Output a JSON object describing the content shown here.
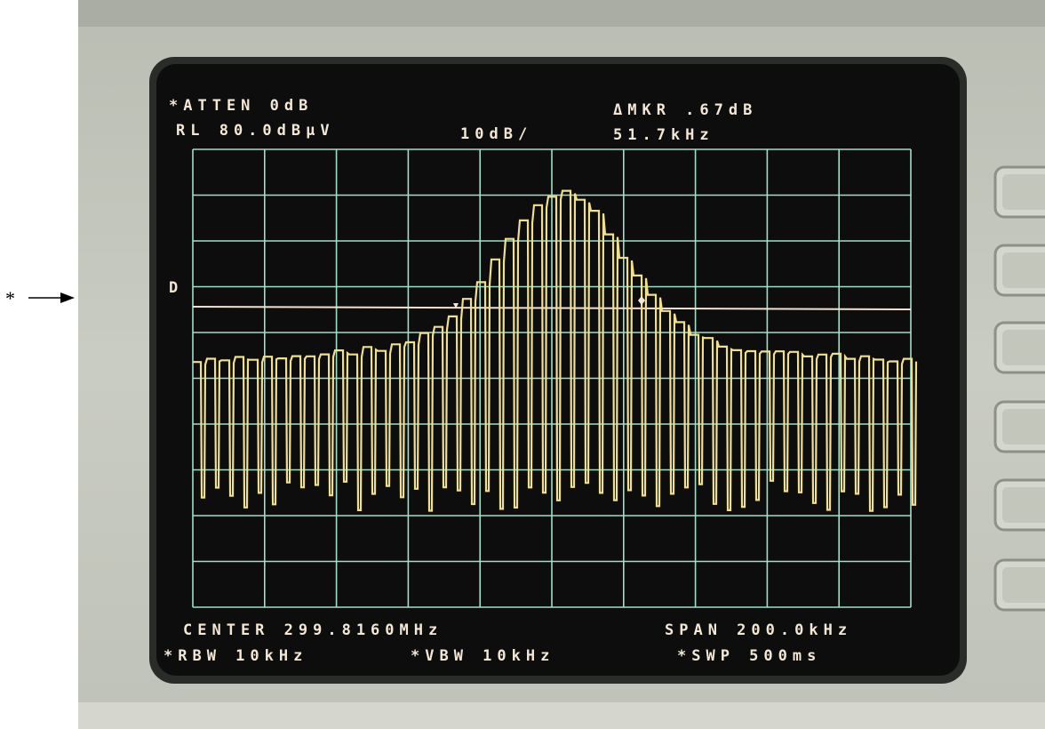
{
  "annotation": {
    "marker": "*"
  },
  "screen": {
    "atten": "*ATTEN 0dB",
    "ref_level": "RL 80.0dBμV",
    "scale": "10dB/",
    "marker_delta": "ΔMKR .67dB",
    "marker_freq": "51.7kHz",
    "display_line": "D",
    "center": "CENTER 299.8160MHz",
    "span": "SPAN 200.0kHz",
    "rbw": "*RBW 10kHz",
    "vbw": "*VBW 10kHz",
    "sweep": "*SWP 500ms"
  }
}
